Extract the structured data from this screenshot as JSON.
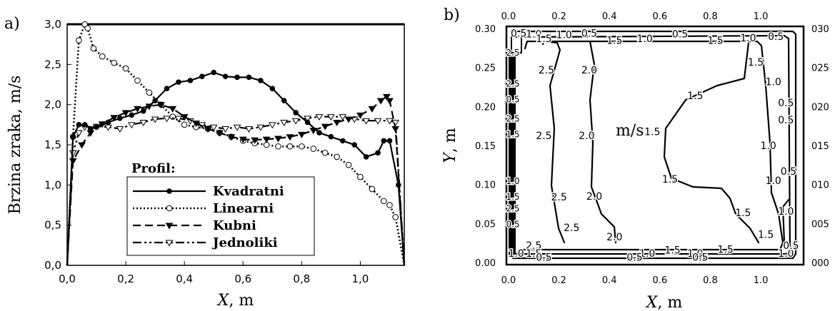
{
  "chart_data": [
    {
      "panel_label": "a)",
      "type": "line",
      "xlabel_var": "X",
      "xlabel_unit": ", m",
      "ylabel": "Brzina zraka, m/s",
      "xlim": [
        0,
        1.15
      ],
      "ylim": [
        0,
        3.0
      ],
      "x_ticks": [
        "0,0",
        "0,2",
        "0,4",
        "0,6",
        "0,8",
        "1,0"
      ],
      "x_tick_values": [
        0,
        0.2,
        0.4,
        0.6,
        0.8,
        1.0
      ],
      "y_ticks": [
        "0,0",
        "0,5",
        "1,0",
        "1,5",
        "2,0",
        "2,5",
        "3,0"
      ],
      "y_tick_values": [
        0,
        0.5,
        1.0,
        1.5,
        2.0,
        2.5,
        3.0
      ],
      "grid": false,
      "legend_title": "Profil:",
      "legend_position": "bottom-center",
      "series": [
        {
          "name": "Kvadratni",
          "line": "solid",
          "marker": "circle-filled",
          "x": [
            0.0,
            0.02,
            0.04,
            0.06,
            0.08,
            0.1,
            0.14,
            0.18,
            0.22,
            0.26,
            0.3,
            0.34,
            0.38,
            0.42,
            0.46,
            0.5,
            0.54,
            0.58,
            0.62,
            0.66,
            0.7,
            0.74,
            0.78,
            0.82,
            0.86,
            0.9,
            0.94,
            0.98,
            1.02,
            1.06,
            1.08,
            1.1,
            1.13,
            1.15
          ],
          "y": [
            0.0,
            1.6,
            1.75,
            1.75,
            1.7,
            1.72,
            1.78,
            1.83,
            1.87,
            1.92,
            2.05,
            2.2,
            2.28,
            2.3,
            2.35,
            2.4,
            2.35,
            2.34,
            2.34,
            2.3,
            2.2,
            2.05,
            1.9,
            1.78,
            1.65,
            1.6,
            1.55,
            1.5,
            1.35,
            1.4,
            1.55,
            1.55,
            1.0,
            0.0
          ]
        },
        {
          "name": "Linearni",
          "line": "dotted",
          "marker": "circle-open",
          "x": [
            0.0,
            0.02,
            0.04,
            0.06,
            0.07,
            0.09,
            0.12,
            0.16,
            0.2,
            0.24,
            0.28,
            0.32,
            0.36,
            0.4,
            0.44,
            0.48,
            0.52,
            0.56,
            0.6,
            0.64,
            0.68,
            0.72,
            0.76,
            0.8,
            0.84,
            0.88,
            0.92,
            0.96,
            1.0,
            1.04,
            1.08,
            1.1,
            1.12,
            1.15
          ],
          "y": [
            0.0,
            1.6,
            2.8,
            3.0,
            2.95,
            2.7,
            2.6,
            2.52,
            2.45,
            2.3,
            2.15,
            2.0,
            1.85,
            1.75,
            1.72,
            1.7,
            1.65,
            1.6,
            1.55,
            1.52,
            1.5,
            1.48,
            1.48,
            1.48,
            1.45,
            1.4,
            1.35,
            1.25,
            1.1,
            0.95,
            0.8,
            0.75,
            0.6,
            0.0
          ]
        },
        {
          "name": "Kubni",
          "line": "dashed",
          "marker": "triangle-down-filled",
          "x": [
            0.0,
            0.02,
            0.05,
            0.08,
            0.12,
            0.16,
            0.2,
            0.24,
            0.28,
            0.32,
            0.36,
            0.4,
            0.44,
            0.48,
            0.52,
            0.56,
            0.6,
            0.64,
            0.68,
            0.72,
            0.76,
            0.8,
            0.84,
            0.88,
            0.92,
            0.96,
            1.0,
            1.04,
            1.07,
            1.09,
            1.1,
            1.12,
            1.15
          ],
          "y": [
            0.0,
            1.3,
            1.5,
            1.65,
            1.76,
            1.84,
            1.9,
            1.95,
            1.98,
            2.0,
            1.95,
            1.85,
            1.77,
            1.7,
            1.65,
            1.6,
            1.57,
            1.56,
            1.57,
            1.58,
            1.6,
            1.63,
            1.68,
            1.73,
            1.78,
            1.82,
            1.87,
            1.95,
            2.05,
            2.1,
            2.05,
            1.7,
            0.0
          ]
        },
        {
          "name": "Jednoliki",
          "line": "dash-dot-dot",
          "marker": "triangle-down-open",
          "x": [
            0.0,
            0.02,
            0.04,
            0.06,
            0.1,
            0.14,
            0.18,
            0.22,
            0.26,
            0.3,
            0.34,
            0.38,
            0.42,
            0.46,
            0.5,
            0.54,
            0.58,
            0.62,
            0.66,
            0.7,
            0.74,
            0.78,
            0.82,
            0.86,
            0.9,
            0.94,
            0.98,
            1.02,
            1.06,
            1.1,
            1.12,
            1.15
          ],
          "y": [
            0.0,
            1.4,
            1.65,
            1.72,
            1.73,
            1.72,
            1.7,
            1.75,
            1.78,
            1.82,
            1.83,
            1.83,
            1.8,
            1.75,
            1.72,
            1.7,
            1.72,
            1.7,
            1.72,
            1.75,
            1.78,
            1.8,
            1.83,
            1.85,
            1.85,
            1.85,
            1.82,
            1.8,
            1.8,
            1.8,
            1.78,
            0.0
          ]
        }
      ]
    },
    {
      "panel_label": "b)",
      "type": "contour",
      "xlabel_var": "X",
      "xlabel_unit": ", m",
      "ylabel_var": "Y",
      "ylabel_unit": ", m",
      "annotation": "m/s",
      "xlim": [
        0,
        1.15
      ],
      "ylim": [
        0,
        0.3
      ],
      "x_ticks": [
        "0.0",
        "0.2",
        "0.4",
        "0.6",
        "0.8",
        "1.0"
      ],
      "x_tick_values": [
        0,
        0.2,
        0.4,
        0.6,
        0.8,
        1.0
      ],
      "x_ticks_top": [
        "0.0",
        "0.2",
        "0.4",
        "0.6",
        "0.8",
        "1.0"
      ],
      "y_ticks": [
        "0.00",
        "0.05",
        "0.10",
        "0.15",
        "0.20",
        "0.25",
        "0.30"
      ],
      "y_ticks_right": [
        "000",
        "005",
        "010",
        "015",
        "020",
        "025",
        "030"
      ],
      "y_tick_values": [
        0,
        0.05,
        0.1,
        0.15,
        0.2,
        0.25,
        0.3
      ],
      "contour_labels": [
        {
          "text": "0.5",
          "x": 0.04,
          "y": 0.294
        },
        {
          "text": "1.0",
          "x": 0.1,
          "y": 0.293
        },
        {
          "text": "1.5",
          "x": 0.14,
          "y": 0.287
        },
        {
          "text": "1.0",
          "x": 0.22,
          "y": 0.292
        },
        {
          "text": "0.5",
          "x": 0.32,
          "y": 0.294
        },
        {
          "text": "1.5",
          "x": 0.42,
          "y": 0.285
        },
        {
          "text": "1.0",
          "x": 0.54,
          "y": 0.287
        },
        {
          "text": "0.5",
          "x": 0.68,
          "y": 0.293
        },
        {
          "text": "1.5",
          "x": 0.82,
          "y": 0.285
        },
        {
          "text": "1.0",
          "x": 0.95,
          "y": 0.288
        },
        {
          "text": "0.5",
          "x": 1.06,
          "y": 0.29
        },
        {
          "text": "2.5",
          "x": 0.15,
          "y": 0.247
        },
        {
          "text": "2.0",
          "x": 0.32,
          "y": 0.247
        },
        {
          "text": "1.5",
          "x": 0.98,
          "y": 0.257
        },
        {
          "text": "1.0",
          "x": 1.05,
          "y": 0.232
        },
        {
          "text": "1.5",
          "x": 0.74,
          "y": 0.214
        },
        {
          "text": "0.5",
          "x": 1.1,
          "y": 0.205
        },
        {
          "text": "0.5",
          "x": 1.1,
          "y": 0.183
        },
        {
          "text": "2.5",
          "x": 0.14,
          "y": 0.163
        },
        {
          "text": "2.0",
          "x": 0.31,
          "y": 0.163
        },
        {
          "text": "1.5",
          "x": 0.57,
          "y": 0.168
        },
        {
          "text": "1.0",
          "x": 1.03,
          "y": 0.15
        },
        {
          "text": "1.5",
          "x": 0.64,
          "y": 0.107
        },
        {
          "text": "1.0",
          "x": 1.05,
          "y": 0.105
        },
        {
          "text": "0.5",
          "x": 1.11,
          "y": 0.117
        },
        {
          "text": "2.5",
          "x": 0.2,
          "y": 0.084
        },
        {
          "text": "2.0",
          "x": 0.34,
          "y": 0.085
        },
        {
          "text": "1.5",
          "x": 0.93,
          "y": 0.064
        },
        {
          "text": "1.0",
          "x": 1.1,
          "y": 0.066
        },
        {
          "text": "2.5",
          "x": 0.25,
          "y": 0.045
        },
        {
          "text": "2.0",
          "x": 0.42,
          "y": 0.033
        },
        {
          "text": "1.5",
          "x": 1.02,
          "y": 0.036
        },
        {
          "text": "1.5",
          "x": 0.65,
          "y": 0.016
        },
        {
          "text": "1.5",
          "x": 0.86,
          "y": 0.017
        },
        {
          "text": "1.0",
          "x": 0.55,
          "y": 0.012
        },
        {
          "text": "1.0",
          "x": 0.74,
          "y": 0.012
        },
        {
          "text": "0.5",
          "x": 0.5,
          "y": 0.007
        },
        {
          "text": "0.5",
          "x": 0.76,
          "y": 0.007
        },
        {
          "text": "1.0",
          "x": 1.1,
          "y": 0.012
        },
        {
          "text": "0.5",
          "x": 1.12,
          "y": 0.022
        },
        {
          "text": "2.5",
          "x": 0.1,
          "y": 0.022
        },
        {
          "text": "1.0",
          "x": 0.03,
          "y": 0.012
        },
        {
          "text": "1.5",
          "x": 0.1,
          "y": 0.012
        },
        {
          "text": "0.5",
          "x": 0.14,
          "y": 0.007
        }
      ],
      "wall_labels": [
        "2.5",
        "2.5",
        "0.5",
        "2.5",
        "1.5",
        "1.0",
        "1.5",
        "2.5",
        "0.5"
      ],
      "wall_label_y": [
        0.27,
        0.23,
        0.21,
        0.185,
        0.165,
        0.105,
        0.085,
        0.07,
        0.05
      ]
    }
  ]
}
